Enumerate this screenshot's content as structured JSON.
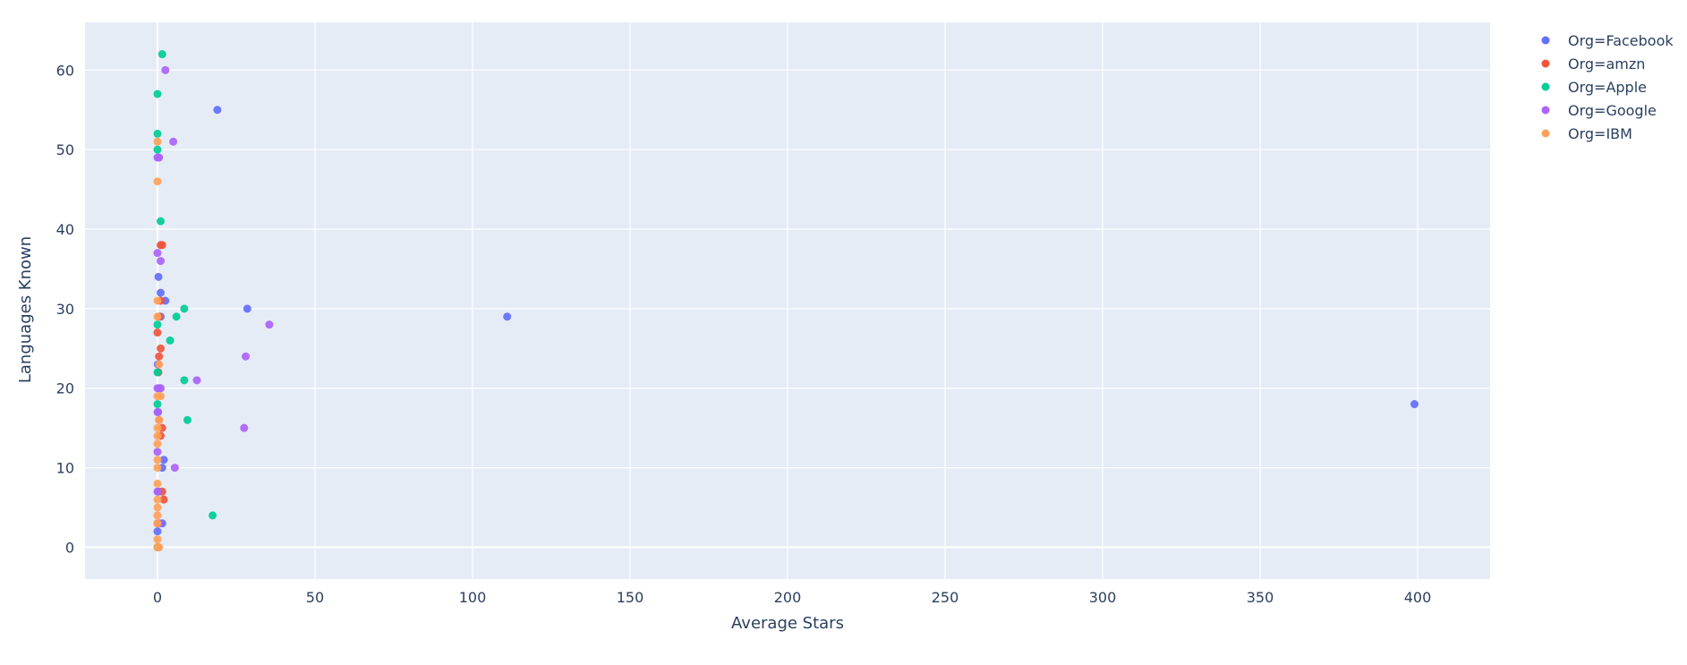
{
  "chart_data": {
    "type": "scatter",
    "title": "",
    "xlabel": "Average Stars",
    "ylabel": "Languages Known",
    "xlim": [
      -23,
      423
    ],
    "ylim": [
      -4,
      66
    ],
    "xticks": [
      0,
      50,
      100,
      150,
      200,
      250,
      300,
      350,
      400
    ],
    "yticks": [
      0,
      10,
      20,
      30,
      40,
      50,
      60
    ],
    "grid": true,
    "legend_position": "top-right",
    "plot_background": "#e5ecf6",
    "series": [
      {
        "name": "Org=Facebook",
        "color": "#636efa",
        "points": [
          [
            19,
            55
          ],
          [
            28.5,
            30
          ],
          [
            111,
            29
          ],
          [
            399,
            18
          ],
          [
            0.3,
            34
          ],
          [
            1,
            32
          ],
          [
            2.5,
            31
          ],
          [
            1,
            29
          ],
          [
            0.5,
            20
          ],
          [
            2,
            11
          ],
          [
            1.5,
            10
          ],
          [
            1.5,
            3
          ],
          [
            0,
            2
          ],
          [
            0.2,
            0
          ],
          [
            0.3,
            7
          ],
          [
            0.1,
            23
          ],
          [
            0.2,
            17
          ]
        ]
      },
      {
        "name": "Org=amzn",
        "color": "#ef553b",
        "points": [
          [
            1,
            38
          ],
          [
            1.5,
            38
          ],
          [
            0.5,
            29
          ],
          [
            0,
            27
          ],
          [
            1,
            25
          ],
          [
            0.5,
            24
          ],
          [
            0.3,
            22
          ],
          [
            1.5,
            15
          ],
          [
            1,
            14
          ],
          [
            1.5,
            7
          ],
          [
            2,
            6
          ],
          [
            0,
            3
          ],
          [
            0.2,
            0
          ],
          [
            1,
            31
          ],
          [
            0.5,
            16
          ]
        ]
      },
      {
        "name": "Org=Apple",
        "color": "#00cc96",
        "points": [
          [
            1.5,
            62
          ],
          [
            0,
            57
          ],
          [
            0,
            52
          ],
          [
            0,
            50
          ],
          [
            1,
            41
          ],
          [
            8.5,
            30
          ],
          [
            6,
            29
          ],
          [
            0,
            28
          ],
          [
            4,
            26
          ],
          [
            0,
            22
          ],
          [
            8.5,
            21
          ],
          [
            0,
            18
          ],
          [
            9.5,
            16
          ],
          [
            17.5,
            4
          ],
          [
            0,
            0
          ]
        ]
      },
      {
        "name": "Org=Google",
        "color": "#ab63fa",
        "points": [
          [
            2.5,
            60
          ],
          [
            5,
            51
          ],
          [
            0,
            49
          ],
          [
            0.5,
            49
          ],
          [
            1,
            36
          ],
          [
            0,
            37
          ],
          [
            35.5,
            28
          ],
          [
            28,
            24
          ],
          [
            12.5,
            21
          ],
          [
            1,
            20
          ],
          [
            0,
            20
          ],
          [
            27.5,
            15
          ],
          [
            0,
            17
          ],
          [
            0,
            12
          ],
          [
            5.5,
            10
          ],
          [
            0,
            7
          ],
          [
            0.5,
            3
          ]
        ]
      },
      {
        "name": "Org=IBM",
        "color": "#ffa15a",
        "points": [
          [
            0,
            51
          ],
          [
            0,
            46
          ],
          [
            0,
            31
          ],
          [
            0,
            29
          ],
          [
            0.5,
            23
          ],
          [
            1,
            19
          ],
          [
            0,
            19
          ],
          [
            0.5,
            16
          ],
          [
            0,
            15
          ],
          [
            0,
            14
          ],
          [
            0,
            13
          ],
          [
            0,
            11
          ],
          [
            0,
            10
          ],
          [
            0,
            8
          ],
          [
            0,
            6
          ],
          [
            0,
            5
          ],
          [
            0,
            4
          ],
          [
            0,
            3
          ],
          [
            0,
            1
          ],
          [
            0,
            0
          ],
          [
            0.5,
            0
          ]
        ]
      }
    ]
  }
}
